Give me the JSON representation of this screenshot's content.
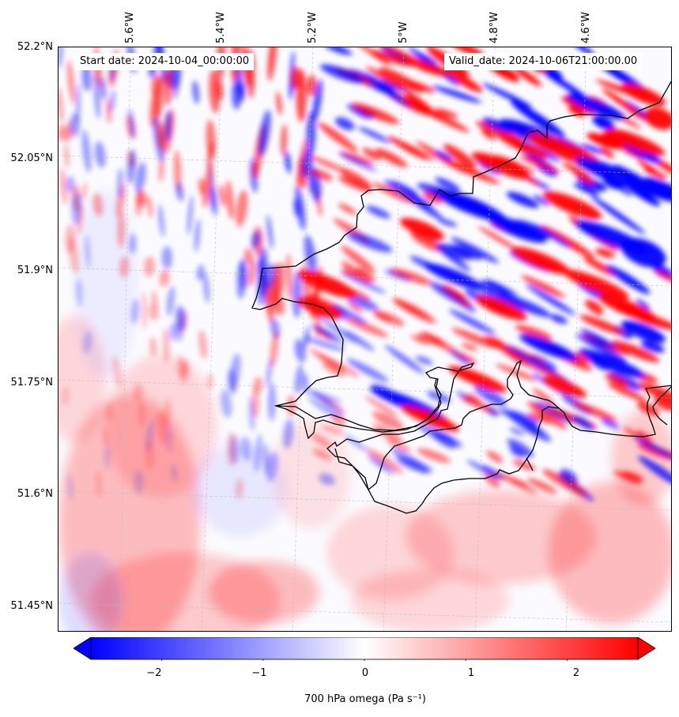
{
  "map": {
    "start_date": "Start date: 2024-10-04_00:00:00",
    "valid_date": "Valid_date: 2024-10-06T21:00:00.00",
    "longitude_labels": [
      "5.6°W",
      "5.4°W",
      "5.2°W",
      "5°W",
      "4.8°W",
      "4.6°W"
    ],
    "latitude_labels": [
      "52.2°N",
      "52.05°N",
      "51.9°N",
      "51.75°N",
      "51.6°N",
      "51.45°N"
    ],
    "extent": {
      "lon_min": -5.75,
      "lon_max": -4.42,
      "lat_min": 51.42,
      "lat_max": 52.2
    },
    "projection": "Lambert conformal",
    "gridlines": "dashed grey",
    "coastline_color": "#000000"
  },
  "colorbar": {
    "ticks": [
      "−2",
      "−1",
      "0",
      "1",
      "2"
    ],
    "tick_values": [
      -2,
      -1,
      0,
      1,
      2
    ],
    "range": [
      -2.7,
      2.7
    ],
    "extend": "both",
    "colormap": "bwr",
    "colors": {
      "negative": "#0000ff",
      "zero": "#ffffff",
      "positive": "#ff0000"
    },
    "title": "700 hPa omega (Pa s⁻¹)",
    "orientation": "horizontal"
  }
}
